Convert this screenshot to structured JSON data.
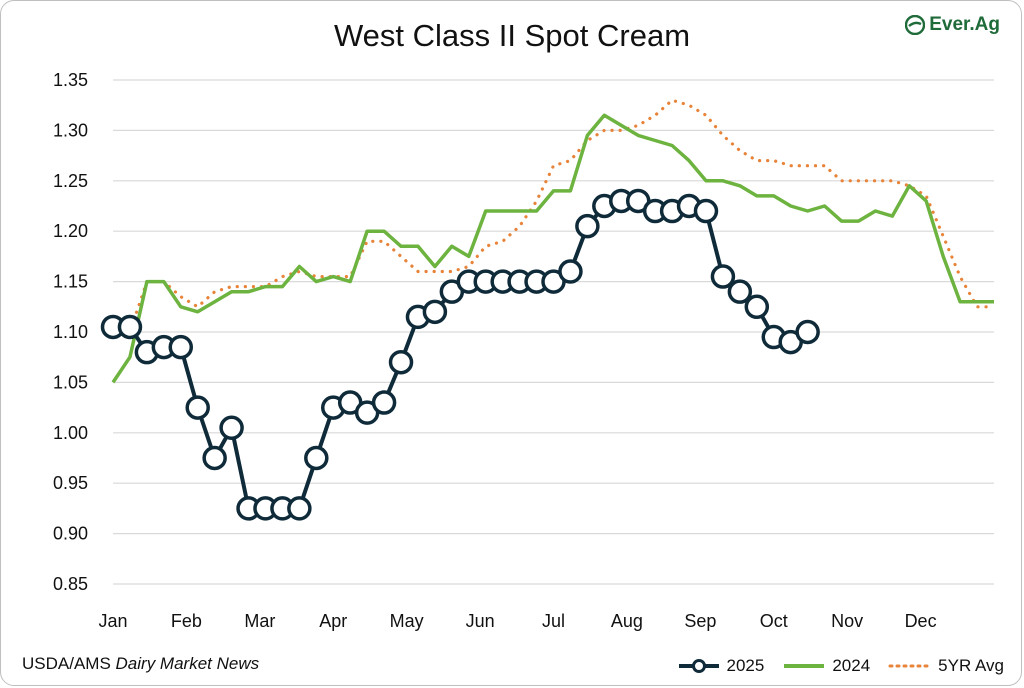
{
  "colors": {
    "series_2025": "#0f2b3a",
    "series_2024": "#6db33f",
    "series_5yr": "#e8843a",
    "grid": "#d9d9d9",
    "logo": "#1f6b3a"
  },
  "logo": {
    "text": "Ever.Ag",
    "icon": "ever-ag-leaf-icon"
  },
  "source": {
    "prefix": "USDA/AMS ",
    "italic": "Dairy Market News"
  },
  "chart_data": {
    "type": "line",
    "title": "West Class II Spot Cream",
    "xlabel": "",
    "ylabel": "",
    "ylim": [
      0.85,
      1.35
    ],
    "y_ticks": [
      "1.35",
      "1.30",
      "1.25",
      "1.20",
      "1.15",
      "1.10",
      "1.05",
      "1.00",
      "0.95",
      "0.90",
      "0.85"
    ],
    "x_ticks": [
      "Jan",
      "Feb",
      "Mar",
      "Apr",
      "May",
      "Jun",
      "Jul",
      "Aug",
      "Sep",
      "Oct",
      "Nov",
      "Dec"
    ],
    "x_unit": "week of year",
    "xlim": [
      1,
      53
    ],
    "grid": true,
    "legend_position": "bottom-right",
    "series": [
      {
        "name": "2025",
        "style": "line-markers",
        "x": [
          1,
          2,
          3,
          4,
          5,
          6,
          7,
          8,
          9,
          10,
          11,
          12,
          13,
          14,
          15,
          16,
          17,
          18,
          19,
          20,
          21,
          22,
          23,
          24,
          25,
          26,
          27,
          28,
          29,
          30,
          31,
          32,
          33,
          34,
          35,
          36,
          37,
          38,
          39,
          40,
          41,
          42
        ],
        "values": [
          1.105,
          1.105,
          1.08,
          1.085,
          1.085,
          1.025,
          0.975,
          1.005,
          0.925,
          0.925,
          0.925,
          0.925,
          0.975,
          1.025,
          1.03,
          1.02,
          1.03,
          1.07,
          1.115,
          1.12,
          1.14,
          1.15,
          1.15,
          1.15,
          1.15,
          1.15,
          1.15,
          1.16,
          1.205,
          1.225,
          1.23,
          1.23,
          1.22,
          1.22,
          1.225,
          1.22,
          1.155,
          1.14,
          1.125,
          1.095,
          1.09,
          1.1
        ]
      },
      {
        "name": "2024",
        "style": "line",
        "x": [
          1,
          2,
          3,
          4,
          5,
          6,
          7,
          8,
          9,
          10,
          11,
          12,
          13,
          14,
          15,
          16,
          17,
          18,
          19,
          20,
          21,
          22,
          23,
          24,
          25,
          26,
          27,
          28,
          29,
          30,
          31,
          32,
          33,
          34,
          35,
          36,
          37,
          38,
          39,
          40,
          41,
          42,
          43,
          44,
          45,
          46,
          47,
          48,
          49,
          50,
          51,
          52,
          53
        ],
        "values": [
          1.05,
          1.075,
          1.15,
          1.15,
          1.125,
          1.12,
          1.13,
          1.14,
          1.14,
          1.145,
          1.145,
          1.165,
          1.15,
          1.155,
          1.15,
          1.2,
          1.2,
          1.185,
          1.185,
          1.165,
          1.185,
          1.175,
          1.22,
          1.22,
          1.22,
          1.22,
          1.24,
          1.24,
          1.295,
          1.315,
          1.305,
          1.295,
          1.29,
          1.285,
          1.27,
          1.25,
          1.25,
          1.245,
          1.235,
          1.235,
          1.225,
          1.22,
          1.225,
          1.21,
          1.21,
          1.22,
          1.215,
          1.245,
          1.23,
          1.175,
          1.13,
          1.13,
          1.13
        ]
      },
      {
        "name": "5YR Avg",
        "style": "dotted",
        "x": [
          1,
          2,
          3,
          4,
          5,
          6,
          7,
          8,
          9,
          10,
          11,
          12,
          13,
          14,
          15,
          16,
          17,
          18,
          19,
          20,
          21,
          22,
          23,
          24,
          25,
          26,
          27,
          28,
          29,
          30,
          31,
          32,
          33,
          34,
          35,
          36,
          37,
          38,
          39,
          40,
          41,
          42,
          43,
          44,
          45,
          46,
          47,
          48,
          49,
          50,
          51,
          52,
          53
        ],
        "values": [
          1.11,
          1.1,
          1.15,
          1.15,
          1.135,
          1.125,
          1.14,
          1.145,
          1.145,
          1.145,
          1.155,
          1.16,
          1.155,
          1.155,
          1.155,
          1.19,
          1.19,
          1.175,
          1.16,
          1.16,
          1.16,
          1.165,
          1.185,
          1.19,
          1.205,
          1.23,
          1.265,
          1.27,
          1.29,
          1.3,
          1.3,
          1.305,
          1.315,
          1.33,
          1.325,
          1.315,
          1.295,
          1.28,
          1.27,
          1.27,
          1.265,
          1.265,
          1.265,
          1.25,
          1.25,
          1.25,
          1.25,
          1.245,
          1.235,
          1.195,
          1.155,
          1.125,
          1.125
        ]
      }
    ]
  }
}
